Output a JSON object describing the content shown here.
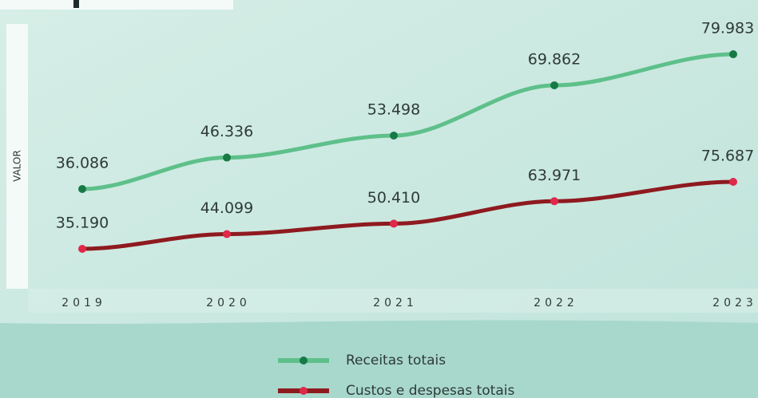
{
  "chart_data": {
    "type": "line",
    "y_label": "VALOR",
    "categories": [
      "2019",
      "2020",
      "2021",
      "2022",
      "2023"
    ],
    "series": [
      {
        "name": "Receitas totais",
        "color": "#5ec08a",
        "marker_color": "#177a45",
        "values": [
          36086,
          46336,
          53498,
          69862,
          79983
        ],
        "value_labels": [
          "36.086",
          "46.336",
          "53.498",
          "69.862",
          "79.983"
        ]
      },
      {
        "name": "Custos e despesas totais",
        "color": "#8e1a1f",
        "marker_color": "#e0284a",
        "values": [
          35190,
          44099,
          50410,
          63971,
          75687
        ],
        "value_labels": [
          "35.190",
          "44.099",
          "50.410",
          "63.971",
          "75.687"
        ]
      }
    ]
  }
}
